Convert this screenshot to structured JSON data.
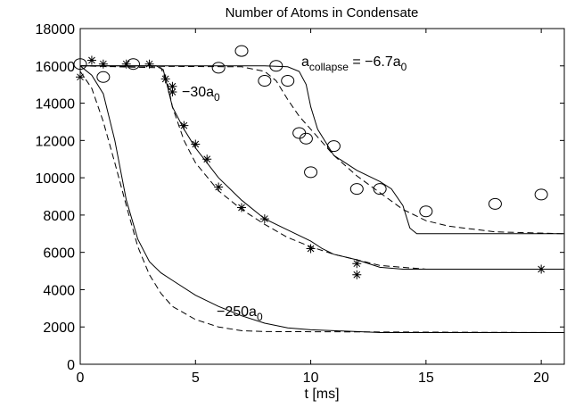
{
  "chart_data": {
    "type": "line",
    "title": "Number of Atoms in Condensate",
    "xlabel": "t  [ms]",
    "xlim": [
      0,
      21
    ],
    "ylim": [
      0,
      18000
    ],
    "xticks": [
      0,
      5,
      10,
      15,
      20
    ],
    "yticks": [
      0,
      2000,
      4000,
      6000,
      8000,
      10000,
      12000,
      14000,
      16000,
      18000
    ],
    "series": [
      {
        "color": "#000000",
        "style": "solid",
        "x": [
          0,
          8,
          9,
          9.5,
          9.8,
          10,
          10.3,
          10.7,
          11,
          12,
          13,
          13.5,
          14,
          14.3,
          14.6,
          21
        ],
        "values": [
          16000,
          16000,
          15950,
          15700,
          15000,
          13800,
          12600,
          11800,
          11200,
          10400,
          9800,
          9400,
          8500,
          7300,
          7000,
          7000
        ]
      },
      {
        "color": "#000000",
        "style": "dashed",
        "x": [
          0,
          7,
          8,
          8.5,
          9,
          9.5,
          10,
          11,
          12,
          13,
          14,
          15,
          16,
          18,
          21
        ],
        "values": [
          16000,
          15950,
          15700,
          15200,
          14200,
          13300,
          12600,
          11200,
          10100,
          9200,
          8300,
          7700,
          7400,
          7100,
          7000
        ]
      },
      {
        "color": "#000000",
        "style": "solid",
        "x": [
          0,
          3.3,
          3.6,
          3.8,
          4,
          4.5,
          5,
          6,
          7,
          8,
          9,
          10,
          10.5,
          11,
          12,
          13,
          14,
          21
        ],
        "values": [
          16000,
          16000,
          15800,
          14800,
          13800,
          12600,
          11600,
          10000,
          8800,
          7800,
          7200,
          6600,
          6200,
          5900,
          5600,
          5200,
          5100,
          5100
        ]
      },
      {
        "color": "#000000",
        "style": "dashed",
        "x": [
          0,
          3.5,
          3.8,
          4,
          4.5,
          5,
          6,
          7,
          8,
          9,
          10,
          11,
          12,
          13,
          15,
          21
        ],
        "values": [
          16000,
          15900,
          15000,
          13800,
          12000,
          10800,
          9300,
          8300,
          7500,
          6800,
          6300,
          5900,
          5600,
          5300,
          5100,
          5100
        ]
      },
      {
        "color": "#000000",
        "style": "solid",
        "x": [
          0,
          0.5,
          1,
          1.5,
          2,
          2.5,
          3,
          3.5,
          4,
          5,
          6,
          7,
          8,
          9,
          10,
          11,
          12,
          13,
          21
        ],
        "values": [
          16000,
          15500,
          14500,
          12000,
          8800,
          6700,
          5500,
          4900,
          4500,
          3700,
          3100,
          2600,
          2200,
          1950,
          1850,
          1800,
          1750,
          1700,
          1700
        ]
      },
      {
        "color": "#000000",
        "style": "dashed",
        "x": [
          0,
          0.5,
          1,
          1.5,
          2,
          2.5,
          3,
          3.5,
          4,
          5,
          6,
          7,
          8,
          21
        ],
        "values": [
          15700,
          14800,
          13000,
          10800,
          8500,
          6300,
          4800,
          3800,
          3100,
          2400,
          2000,
          1800,
          1750,
          1700
        ]
      },
      {
        "color": "#000000",
        "marker": "circle",
        "x": [
          0,
          1,
          2.3,
          6,
          7,
          8.5,
          8,
          9,
          9.5,
          9.8,
          10,
          11,
          12,
          13,
          15,
          18,
          20
        ],
        "values": [
          16100,
          15400,
          16100,
          15900,
          16800,
          16000,
          15200,
          15200,
          12400,
          12100,
          10300,
          11700,
          9400,
          9400,
          8200,
          8600,
          9100
        ]
      },
      {
        "color": "#000000",
        "marker": "star",
        "x": [
          0,
          0.5,
          1,
          2,
          3,
          3.7,
          4,
          4,
          4.5,
          5,
          5.5,
          6,
          7,
          8,
          10,
          12,
          12,
          20
        ],
        "values": [
          15400,
          16300,
          16100,
          16100,
          16100,
          15300,
          14900,
          14600,
          12800,
          11800,
          11000,
          9500,
          8400,
          7800,
          6200,
          5400,
          4800,
          5100
        ]
      }
    ],
    "annotations": [
      [
        "a",
        "collapse",
        " = −6.7a",
        "0"
      ],
      [
        "−30a",
        "0"
      ],
      [
        "−250a",
        "0"
      ]
    ]
  }
}
